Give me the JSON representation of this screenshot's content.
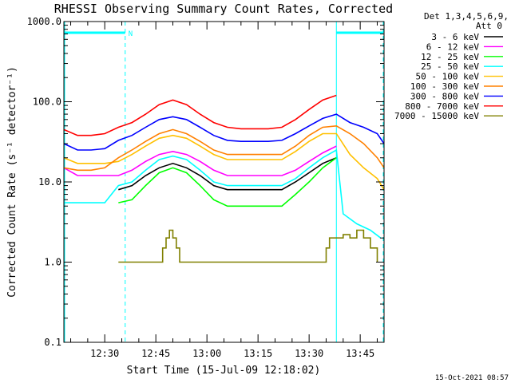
{
  "chart_data": {
    "type": "line",
    "title": "RHESSI Observing Summary Count Rates, Corrected",
    "xlabel": "Start Time (15-Jul-09 12:18:02)",
    "ylabel": "Corrected Count Rate (s⁻¹ detector⁻¹)",
    "y_scale": "log",
    "ylim": [
      0.1,
      1000
    ],
    "xlim": [
      "12:18",
      "13:52"
    ],
    "x_ticks": [
      "12:30",
      "12:45",
      "13:00",
      "13:15",
      "13:30",
      "13:45"
    ],
    "y_ticks": [
      "0.1",
      "1.0",
      "10.0",
      "100.0",
      "1000.0"
    ],
    "legend_header": [
      "Det 1,3,4,5,6,9,",
      "Att 0"
    ],
    "legend_placement": "outside-right",
    "timestamp": "15-Oct-2021 08:57",
    "annotations": {
      "night_marker": "N",
      "night_color": "#00ffff",
      "night_intervals": [
        [
          "12:18",
          "12:36"
        ],
        [
          "13:38",
          "13:52"
        ]
      ]
    },
    "series": [
      {
        "name": "3 - 6 keV",
        "color": "#000000",
        "x": [
          "12:34",
          "12:38",
          "12:42",
          "12:46",
          "12:50",
          "12:54",
          "12:58",
          "13:02",
          "13:06",
          "13:10",
          "13:14",
          "13:18",
          "13:22",
          "13:26",
          "13:30",
          "13:34",
          "13:38"
        ],
        "y": [
          8,
          9,
          12,
          15,
          17,
          15,
          12,
          9,
          8,
          8,
          8,
          8,
          8,
          10,
          13,
          17,
          20
        ]
      },
      {
        "name": "6 - 12 keV",
        "color": "#ff00ff",
        "x": [
          "12:18",
          "12:22",
          "12:26",
          "12:30",
          "12:34",
          "12:38",
          "12:42",
          "12:46",
          "12:50",
          "12:54",
          "12:58",
          "13:02",
          "13:06",
          "13:10",
          "13:14",
          "13:18",
          "13:22",
          "13:26",
          "13:30",
          "13:34",
          "13:38"
        ],
        "y": [
          15,
          12,
          12,
          12,
          12,
          14,
          18,
          22,
          24,
          22,
          18,
          14,
          12,
          12,
          12,
          12,
          12,
          14,
          18,
          23,
          28
        ]
      },
      {
        "name": "12 - 25 keV",
        "color": "#00ff00",
        "x": [
          "12:34",
          "12:38",
          "12:42",
          "12:46",
          "12:50",
          "12:54",
          "12:58",
          "13:02",
          "13:06",
          "13:10",
          "13:14",
          "13:18",
          "13:22",
          "13:26",
          "13:30",
          "13:34",
          "13:38"
        ],
        "y": [
          5.5,
          6,
          9,
          13,
          15,
          13,
          9,
          6,
          5,
          5,
          5,
          5,
          5,
          7,
          10,
          15,
          20
        ]
      },
      {
        "name": "25 - 50 keV",
        "color": "#00ffff",
        "x": [
          "12:18",
          "12:22",
          "12:26",
          "12:30",
          "12:34",
          "12:38",
          "12:42",
          "12:46",
          "12:50",
          "12:54",
          "12:58",
          "13:02",
          "13:06",
          "13:10",
          "13:14",
          "13:18",
          "13:22",
          "13:26",
          "13:30",
          "13:34",
          "13:38",
          "13:40",
          "13:44",
          "13:48",
          "13:51"
        ],
        "y": [
          5.5,
          5.5,
          5.5,
          5.5,
          9,
          10,
          14,
          19,
          21,
          19,
          14,
          10,
          9,
          9,
          9,
          9,
          9,
          11,
          15,
          20,
          25,
          4,
          3,
          2.5,
          2
        ]
      },
      {
        "name": "50 - 100 keV",
        "color": "#ffc000",
        "x": [
          "12:18",
          "12:22",
          "12:26",
          "12:30",
          "12:34",
          "12:38",
          "12:42",
          "12:46",
          "12:50",
          "12:54",
          "12:58",
          "13:02",
          "13:06",
          "13:10",
          "13:14",
          "13:18",
          "13:22",
          "13:26",
          "13:30",
          "13:34",
          "13:38",
          "13:42",
          "13:46",
          "13:50",
          "13:52"
        ],
        "y": [
          20,
          17,
          17,
          17,
          18,
          22,
          28,
          35,
          38,
          35,
          28,
          22,
          19,
          19,
          19,
          19,
          19,
          24,
          32,
          40,
          40,
          22,
          15,
          11,
          8
        ]
      },
      {
        "name": "100 - 300 keV",
        "color": "#ff8000",
        "x": [
          "12:18",
          "12:22",
          "12:26",
          "12:30",
          "12:34",
          "12:38",
          "12:42",
          "12:46",
          "12:50",
          "12:54",
          "12:58",
          "13:02",
          "13:06",
          "13:10",
          "13:14",
          "13:18",
          "13:22",
          "13:26",
          "13:30",
          "13:34",
          "13:38",
          "13:42",
          "13:46",
          "13:50",
          "13:52"
        ],
        "y": [
          15,
          14,
          14,
          15,
          20,
          25,
          32,
          40,
          45,
          40,
          32,
          25,
          22,
          22,
          22,
          22,
          22,
          28,
          38,
          48,
          50,
          40,
          30,
          20,
          15
        ]
      },
      {
        "name": "300 - 800 keV",
        "color": "#0000ff",
        "x": [
          "12:18",
          "12:22",
          "12:26",
          "12:30",
          "12:34",
          "12:38",
          "12:42",
          "12:46",
          "12:50",
          "12:54",
          "12:58",
          "13:02",
          "13:06",
          "13:10",
          "13:14",
          "13:18",
          "13:22",
          "13:26",
          "13:30",
          "13:34",
          "13:38",
          "13:42",
          "13:46",
          "13:50",
          "13:52"
        ],
        "y": [
          30,
          25,
          25,
          26,
          33,
          38,
          48,
          60,
          65,
          60,
          48,
          38,
          33,
          32,
          32,
          32,
          33,
          40,
          50,
          62,
          70,
          55,
          48,
          40,
          30
        ]
      },
      {
        "name": "800 - 7000 keV",
        "color": "#ff0000",
        "x": [
          "12:18",
          "12:22",
          "12:26",
          "12:30",
          "12:34",
          "12:38",
          "12:42",
          "12:46",
          "12:50",
          "12:54",
          "12:58",
          "13:02",
          "13:06",
          "13:10",
          "13:14",
          "13:18",
          "13:22",
          "13:26",
          "13:30",
          "13:34",
          "13:38"
        ],
        "y": [
          45,
          38,
          38,
          40,
          48,
          55,
          70,
          92,
          105,
          92,
          70,
          55,
          48,
          46,
          46,
          46,
          48,
          60,
          80,
          105,
          120
        ]
      },
      {
        "name": "7000 - 15000 keV",
        "color": "#808000",
        "x": [
          "12:34",
          "12:37",
          "12:46",
          "12:47",
          "12:48",
          "12:49",
          "12:50",
          "12:51",
          "12:52",
          "13:34",
          "13:35",
          "13:36",
          "13:38",
          "13:40",
          "13:42",
          "13:44",
          "13:46",
          "13:48",
          "13:50"
        ],
        "y": [
          1,
          1,
          1,
          1.5,
          2,
          2.5,
          2,
          1.5,
          1,
          1,
          1.5,
          2,
          2,
          2.2,
          2,
          2.5,
          2,
          1.5,
          1
        ]
      }
    ]
  }
}
